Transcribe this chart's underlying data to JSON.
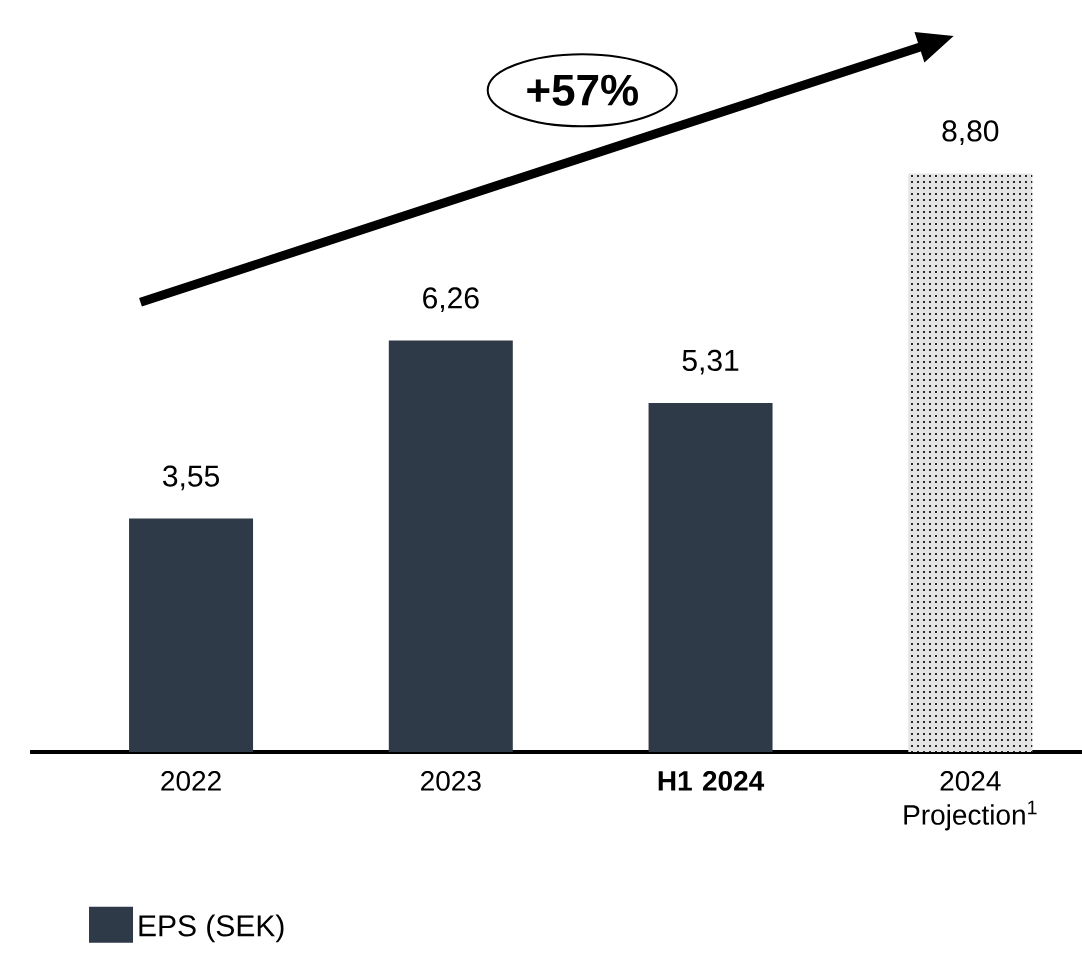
{
  "chart_data": {
    "type": "bar",
    "categories": [
      "2022",
      "2023",
      "**H1 2024**",
      "2024 Projection$^{1}$"
    ],
    "series": [
      {
        "name": "EPS (SEK)",
        "color": "#2e3a47",
        "colors": [
          "#2e3a47",
          "#2e3a47",
          "#2e3a47",
          "#e4e4e4"
        ],
        "values": [
          3.55,
          6.26,
          5.31,
          8.8
        ],
        "value_labels": [
          "3,55",
          "6,26",
          "5,31",
          "8,80"
        ]
      }
    ],
    "annotations": [
      "+57%"
    ],
    "legend": "bottom left"
  }
}
